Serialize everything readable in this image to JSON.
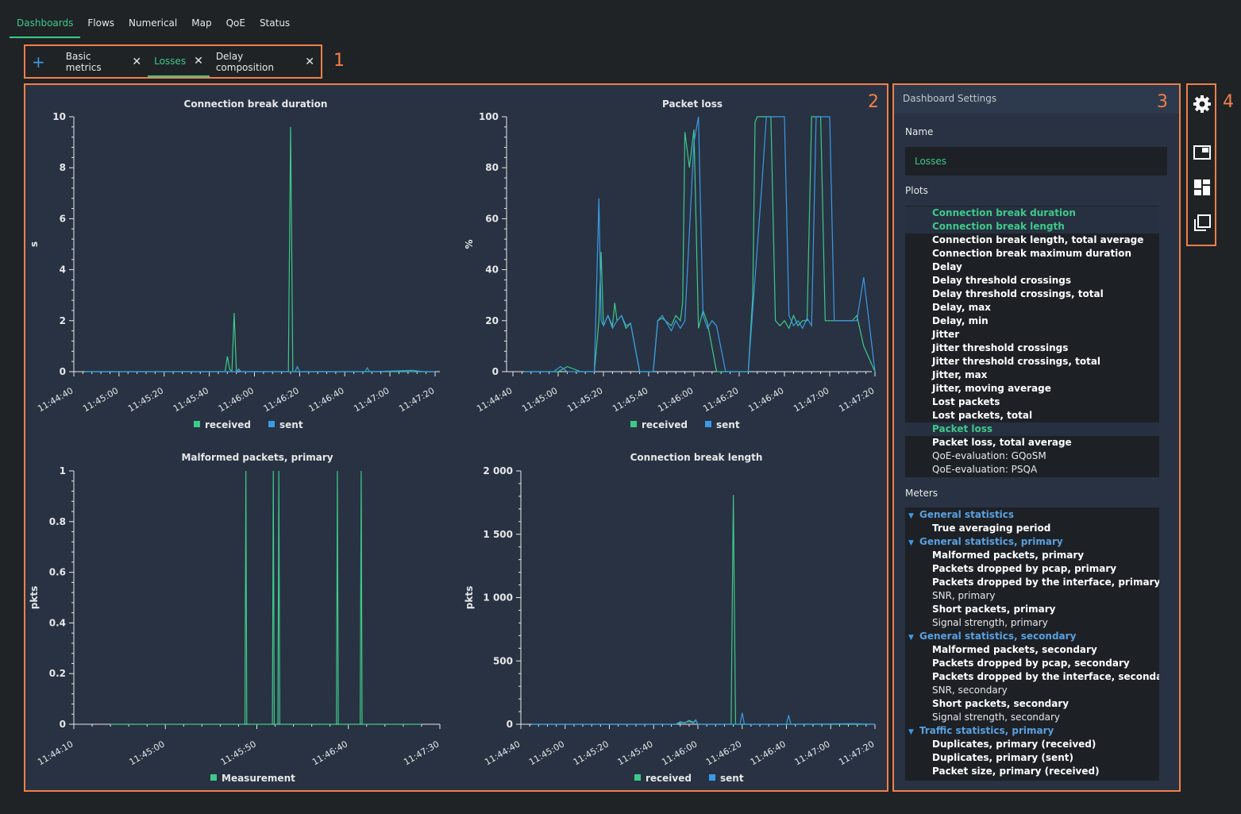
{
  "nav": [
    {
      "label": "Dashboards",
      "active": true
    },
    {
      "label": "Flows"
    },
    {
      "label": "Numerical"
    },
    {
      "label": "Map"
    },
    {
      "label": "QoE"
    },
    {
      "label": "Status"
    }
  ],
  "tabs": [
    {
      "label": "Basic metrics"
    },
    {
      "label": "Losses",
      "active": true
    },
    {
      "label": "Delay composition"
    }
  ],
  "markers": [
    "1",
    "2",
    "3",
    "4"
  ],
  "colors": {
    "received": "#3ec98a",
    "sent": "#3b9ae6",
    "accent": "#f07f4a"
  },
  "settings": {
    "title": "Dashboard Settings",
    "name_label": "Name",
    "name_value": "Losses",
    "plots_label": "Plots",
    "meters_label": "Meters",
    "plots": [
      {
        "label": "Connection break duration",
        "sel": true
      },
      {
        "label": "Connection break length",
        "sel": true
      },
      {
        "label": "Connection break length, total average"
      },
      {
        "label": "Connection break maximum duration"
      },
      {
        "label": "Delay"
      },
      {
        "label": "Delay threshold crossings"
      },
      {
        "label": "Delay threshold crossings, total"
      },
      {
        "label": "Delay, max"
      },
      {
        "label": "Delay, min"
      },
      {
        "label": "Jitter"
      },
      {
        "label": "Jitter threshold crossings"
      },
      {
        "label": "Jitter threshold crossings, total"
      },
      {
        "label": "Jitter, max"
      },
      {
        "label": "Jitter, moving average"
      },
      {
        "label": "Lost packets"
      },
      {
        "label": "Lost packets, total"
      },
      {
        "label": "Packet loss",
        "sel": true
      },
      {
        "label": "Packet loss, total average"
      },
      {
        "label": "QoE-evaluation: GQoSM",
        "norm": true
      },
      {
        "label": "QoE-evaluation: PSQA",
        "norm": true
      }
    ],
    "meters": [
      {
        "group": "General statistics"
      },
      {
        "label": "True averaging period"
      },
      {
        "group": "General statistics, primary"
      },
      {
        "label": "Malformed packets, primary"
      },
      {
        "label": "Packets dropped by pcap, primary"
      },
      {
        "label": "Packets dropped by the interface, primary"
      },
      {
        "label": "SNR, primary",
        "norm": true
      },
      {
        "label": "Short packets, primary"
      },
      {
        "label": "Signal strength, primary",
        "norm": true
      },
      {
        "group": "General statistics, secondary"
      },
      {
        "label": "Malformed packets, secondary"
      },
      {
        "label": "Packets dropped by pcap, secondary"
      },
      {
        "label": "Packets dropped by the interface, secondary"
      },
      {
        "label": "SNR, secondary",
        "norm": true
      },
      {
        "label": "Short packets, secondary"
      },
      {
        "label": "Signal strength, secondary",
        "norm": true
      },
      {
        "group": "Traffic statistics, primary"
      },
      {
        "label": "Duplicates, primary (received)"
      },
      {
        "label": "Duplicates, primary (sent)"
      },
      {
        "label": "Packet size, primary (received)"
      }
    ]
  },
  "sidebar_icons": [
    "gear-icon",
    "window-icon",
    "dashboard-layout-icon",
    "copy-window-icon"
  ],
  "chart_data": [
    {
      "type": "line",
      "title": "Connection break duration",
      "ylabel": "s",
      "ylim": [
        0,
        10
      ],
      "yticks": [
        "0",
        "2",
        "4",
        "6",
        "8",
        "10"
      ],
      "x_ticks": [
        "11:44:40",
        "11:45:00",
        "11:45:20",
        "11:45:40",
        "11:46:00",
        "11:46:20",
        "11:46:40",
        "11:47:00",
        "11:47:20"
      ],
      "xlim_s": [
        0,
        160
      ],
      "series": [
        {
          "name": "received",
          "color": "#3ec98a",
          "x": [
            5,
            67,
            68,
            69,
            70,
            71,
            72,
            73,
            74,
            75,
            95,
            96,
            97,
            100,
            130,
            131,
            132,
            150,
            160
          ],
          "y": [
            0,
            0,
            0.6,
            0.1,
            0,
            2.3,
            0,
            0.1,
            0,
            0,
            0,
            9.6,
            0,
            0,
            0,
            0,
            0,
            0,
            0
          ]
        },
        {
          "name": "sent",
          "color": "#3b9ae6",
          "x": [
            5,
            72,
            73,
            74,
            75,
            98,
            99,
            100,
            129,
            130,
            131,
            150,
            155,
            160
          ],
          "y": [
            0,
            0,
            0.1,
            0,
            0,
            0,
            0.2,
            0,
            0,
            0.15,
            0,
            0.05,
            0,
            0
          ]
        }
      ]
    },
    {
      "type": "line",
      "title": "Packet loss",
      "ylabel": "%",
      "ylim": [
        0,
        100
      ],
      "yticks": [
        "0",
        "20",
        "40",
        "60",
        "80",
        "100"
      ],
      "x_ticks": [
        "11:44:40",
        "11:45:00",
        "11:45:20",
        "11:45:40",
        "11:46:00",
        "11:46:20",
        "11:46:40",
        "11:47:00",
        "11:47:20"
      ],
      "xlim_s": [
        0,
        160
      ],
      "series": [
        {
          "name": "received",
          "color": "#3ec98a",
          "x": [
            5,
            20,
            24,
            30,
            36,
            38,
            39,
            40,
            42,
            44,
            45,
            46,
            48,
            50,
            52,
            56,
            60,
            62,
            64,
            66,
            70,
            72,
            74,
            75,
            76,
            78,
            80,
            82,
            84,
            86,
            90,
            94,
            96,
            98,
            100,
            104,
            106,
            107,
            108,
            110,
            112,
            114,
            116,
            118,
            120,
            122,
            124,
            126,
            128,
            130,
            132,
            133,
            134,
            136,
            138,
            150,
            152,
            155,
            160
          ],
          "y": [
            0,
            0,
            2,
            0,
            0,
            20,
            47,
            18,
            22,
            18,
            27,
            20,
            22,
            17,
            19,
            0,
            0,
            0,
            20,
            21,
            18,
            22,
            20,
            27,
            94,
            80,
            95,
            17,
            24,
            19,
            0,
            0,
            0,
            0,
            0,
            0,
            30,
            98,
            100,
            100,
            100,
            100,
            20,
            18,
            20,
            17,
            22,
            18,
            20,
            20,
            100,
            100,
            100,
            100,
            20,
            20,
            22,
            10,
            0
          ]
        },
        {
          "name": "sent",
          "color": "#3b9ae6",
          "x": [
            5,
            18,
            21,
            24,
            27,
            36,
            38,
            39,
            40,
            42,
            44,
            46,
            48,
            50,
            52,
            56,
            60,
            62,
            64,
            66,
            70,
            72,
            74,
            76,
            80,
            82,
            84,
            86,
            88,
            90,
            94,
            100,
            104,
            110,
            112,
            114,
            116,
            118,
            120,
            122,
            124,
            126,
            128,
            130,
            132,
            134,
            136,
            138,
            140,
            142,
            150,
            152,
            155,
            160
          ],
          "y": [
            0,
            0,
            2,
            0,
            0,
            0,
            68,
            20,
            18,
            22,
            17,
            20,
            22,
            18,
            19,
            0,
            0,
            0,
            20,
            22,
            16,
            20,
            17,
            20,
            90,
            100,
            22,
            17,
            20,
            18,
            0,
            0,
            0,
            73,
            100,
            100,
            100,
            100,
            100,
            22,
            18,
            20,
            17,
            21,
            18,
            100,
            100,
            100,
            100,
            20,
            20,
            20,
            37,
            0
          ]
        }
      ]
    },
    {
      "type": "line",
      "title": "Malformed packets, primary",
      "ylabel": "pkts",
      "ylim": [
        0,
        1
      ],
      "yticks": [
        "0",
        "0.2",
        "0.4",
        "0.6",
        "0.8",
        "1"
      ],
      "x_ticks": [
        "11:44:10",
        "11:45:00",
        "11:45:50",
        "11:46:40",
        "11:47:30"
      ],
      "xlim_s": [
        0,
        200
      ],
      "series": [
        {
          "name": "Measurement",
          "color": "#3ec98a",
          "x": [
            20,
            93.5,
            94,
            94.5,
            108.5,
            109,
            109.5,
            111.5,
            112,
            112.5,
            143.5,
            144,
            144.5,
            156.5,
            157,
            157.5,
            190
          ],
          "y": [
            0,
            0,
            1,
            0,
            0,
            1,
            0,
            0,
            1,
            0,
            0,
            1,
            0,
            0,
            1,
            0,
            0
          ]
        }
      ]
    },
    {
      "type": "line",
      "title": "Connection break length",
      "ylabel": "pkts",
      "ylim": [
        0,
        2000
      ],
      "yticks": [
        "0",
        "500",
        "1 000",
        "1 500",
        "2 000"
      ],
      "x_ticks": [
        "11:44:40",
        "11:45:00",
        "11:45:20",
        "11:45:40",
        "11:46:00",
        "11:46:20",
        "11:46:40",
        "11:47:00",
        "11:47:20"
      ],
      "xlim_s": [
        0,
        160
      ],
      "series": [
        {
          "name": "received",
          "color": "#3ec98a",
          "x": [
            5,
            70,
            72,
            74,
            76,
            78,
            79,
            80,
            95,
            96,
            97,
            100,
            160
          ],
          "y": [
            0,
            0,
            20,
            10,
            30,
            15,
            35,
            0,
            0,
            1810,
            0,
            0,
            0
          ]
        },
        {
          "name": "sent",
          "color": "#3b9ae6",
          "x": [
            5,
            70,
            72,
            76,
            78,
            79,
            80,
            99,
            100,
            101,
            120,
            121,
            122,
            150,
            160
          ],
          "y": [
            0,
            0,
            10,
            20,
            10,
            30,
            0,
            0,
            90,
            0,
            0,
            70,
            0,
            5,
            0
          ]
        }
      ]
    }
  ]
}
